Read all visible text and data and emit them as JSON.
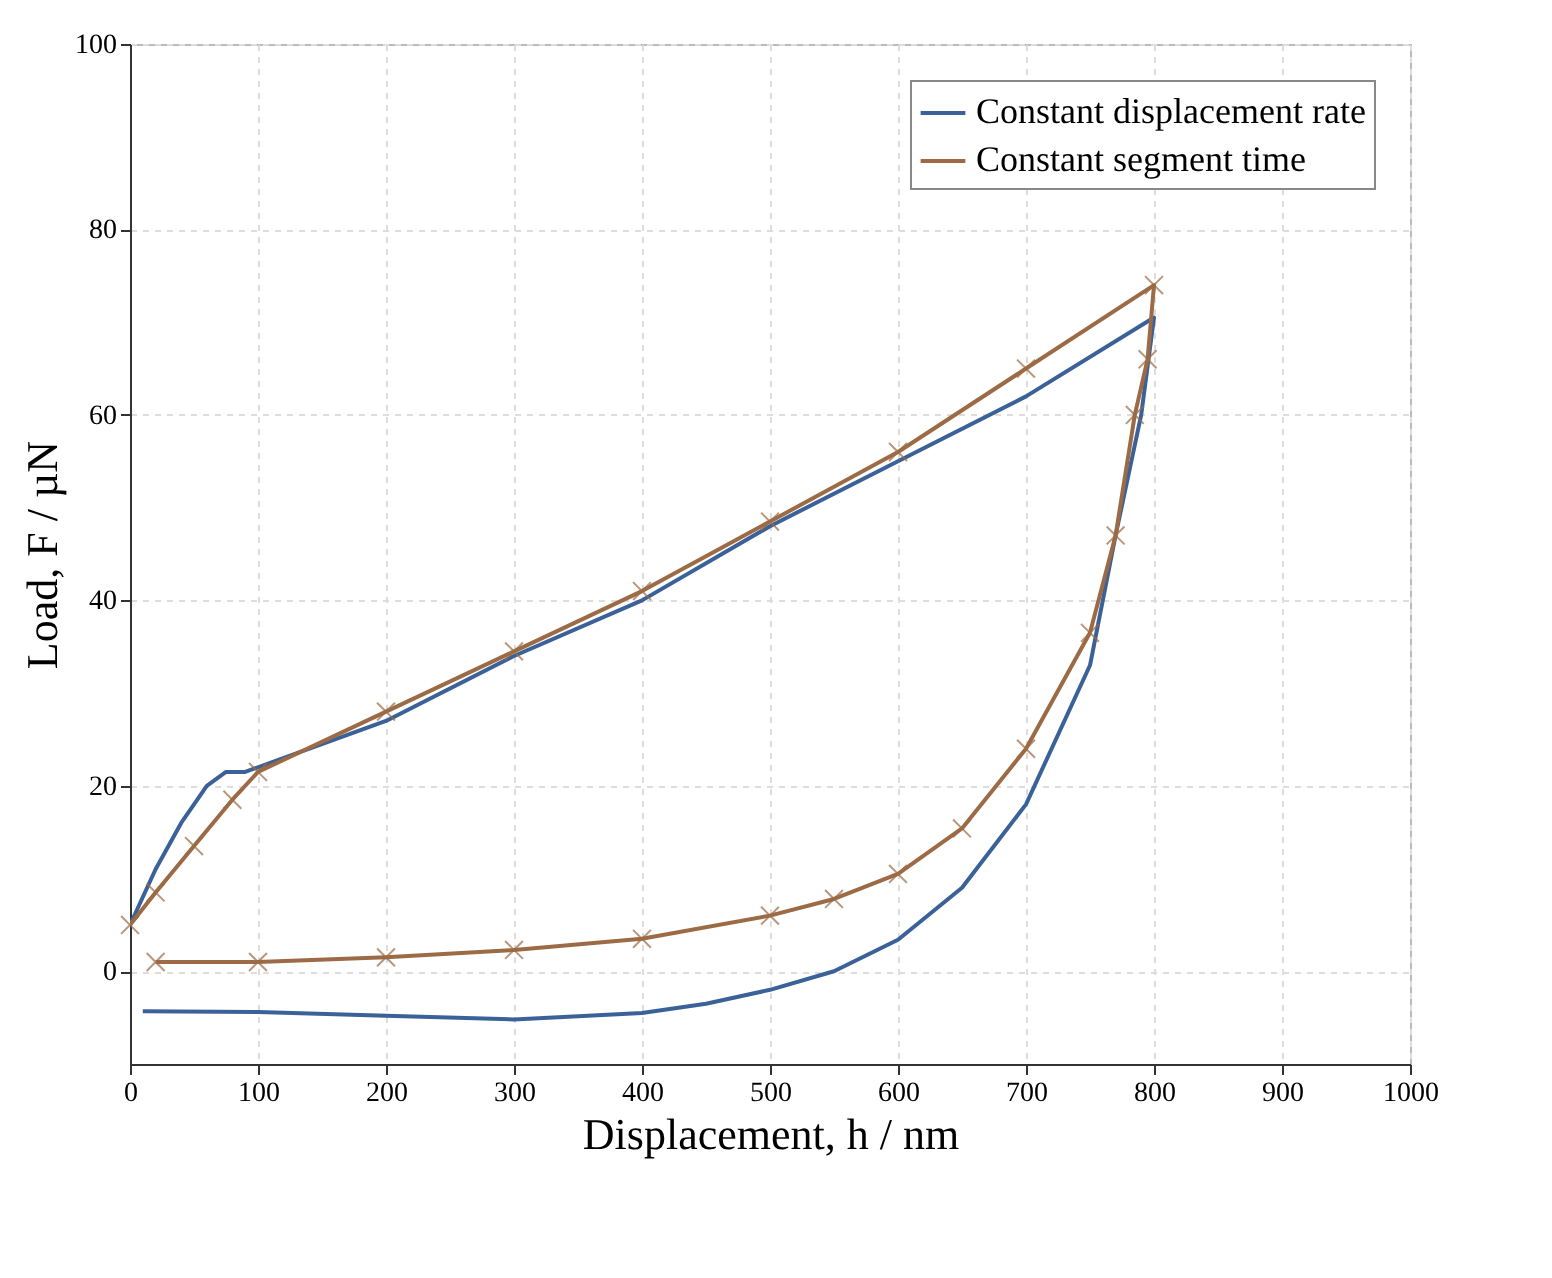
{
  "chart_data": {
    "type": "line",
    "xlabel": "Displacement, h / nm",
    "ylabel": "Load, F / µN",
    "xlim": [
      0,
      1000
    ],
    "xticks": [
      0,
      100,
      200,
      300,
      400,
      500,
      600,
      700,
      800,
      900,
      1000
    ],
    "ylim": [
      -10,
      100
    ],
    "yticks": [
      0,
      20,
      40,
      60,
      80,
      100
    ],
    "grid": true,
    "legend": "top right",
    "line_style": "solid",
    "series": [
      {
        "name": "Constant displacement rate",
        "color": "#3a6198",
        "marker": "none",
        "x": [
          0,
          20,
          40,
          60,
          75,
          90,
          100,
          200,
          300,
          400,
          500,
          600,
          700,
          800,
          790,
          770,
          750,
          700,
          650,
          600,
          550,
          500,
          450,
          400,
          300,
          200,
          100,
          10
        ],
        "values": [
          5,
          11,
          16,
          20,
          21.5,
          21.5,
          22,
          27,
          34,
          40,
          48,
          55,
          62,
          70.5,
          60,
          47,
          33,
          18,
          9,
          3.4,
          0,
          -2,
          -3.5,
          -4.5,
          -5.2,
          -4.8,
          -4.4,
          -4.3
        ]
      },
      {
        "name": "Constant segment time",
        "color": "#9c6b45",
        "marker": "cross",
        "x": [
          0,
          20,
          50,
          80,
          100,
          200,
          300,
          400,
          500,
          600,
          700,
          800,
          795,
          785,
          770,
          750,
          700,
          650,
          600,
          550,
          500,
          400,
          300,
          200,
          100,
          20
        ],
        "values": [
          5,
          8.5,
          13.5,
          18.5,
          21.5,
          28,
          34.5,
          41,
          48.5,
          56,
          65,
          74,
          66,
          60,
          47,
          36.5,
          24,
          15.4,
          10.5,
          7.8,
          6,
          3.5,
          2.3,
          1.5,
          1,
          1
        ]
      }
    ]
  }
}
